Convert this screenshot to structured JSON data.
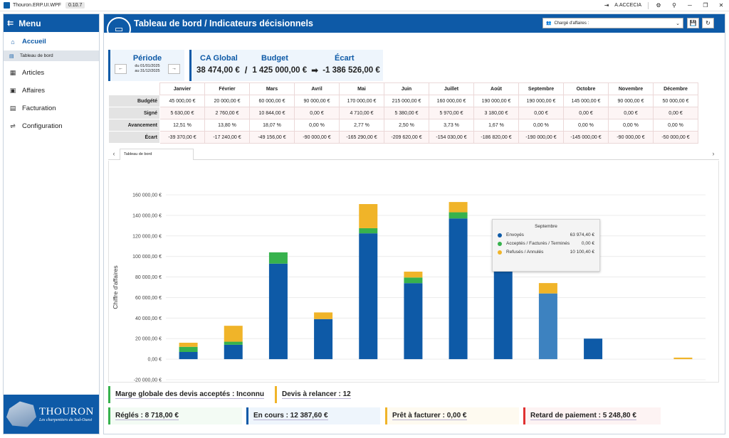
{
  "window": {
    "title": "Thouron.ERP.UI.WPF",
    "version": "0.10.7",
    "user": "A.ACCECIA"
  },
  "sidebar": {
    "header": "Menu",
    "items": [
      {
        "label": "Accueil",
        "icon": "home-icon",
        "active": true
      },
      {
        "label": "Articles",
        "icon": "articles-icon"
      },
      {
        "label": "Affaires",
        "icon": "briefcase-icon"
      },
      {
        "label": "Facturation",
        "icon": "invoice-icon"
      },
      {
        "label": "Configuration",
        "icon": "sliders-icon"
      }
    ],
    "subitem": "Tableau de bord",
    "logo": {
      "brand": "THOURON",
      "tagline": "Les charpentiers du Sud-Ouest"
    }
  },
  "header": {
    "title": "Tableau de bord / Indicateurs décisionnels",
    "charge_label": "Chargé d'affaires :"
  },
  "periode": {
    "label": "Période",
    "from": "du 01/01/2025",
    "to": "au 31/12/2025"
  },
  "kpi": {
    "ca_label": "CA Global",
    "budget_label": "Budget",
    "ecart_label": "Écart",
    "ca": "38 474,00 €",
    "budget": "1 425 000,00 €",
    "ecart": "-1 386 526,00 €"
  },
  "monthly": {
    "months": [
      "Janvier",
      "Février",
      "Mars",
      "Avril",
      "Mai",
      "Juin",
      "Juillet",
      "Août",
      "Septembre",
      "Octobre",
      "Novembre",
      "Décembre"
    ],
    "rows": [
      {
        "label": "Budgété",
        "values": [
          "45 000,00 €",
          "20 000,00 €",
          "60 000,00 €",
          "90 000,00 €",
          "170 000,00 €",
          "215 000,00 €",
          "160 000,00 €",
          "190 000,00 €",
          "190 000,00 €",
          "145 000,00 €",
          "90 000,00 €",
          "50 000,00 €"
        ]
      },
      {
        "label": "Signé",
        "values": [
          "5 630,00 €",
          "2 760,00 €",
          "10 844,00 €",
          "0,00 €",
          "4 710,00 €",
          "5 380,00 €",
          "5 970,00 €",
          "3 180,00 €",
          "0,00 €",
          "0,00 €",
          "0,00 €",
          "0,00 €"
        ]
      },
      {
        "label": "Avancement",
        "values": [
          "12,51 %",
          "13,80 %",
          "18,07 %",
          "0,00 %",
          "2,77 %",
          "2,50 %",
          "3,73 %",
          "1,67 %",
          "0,00 %",
          "0,00 %",
          "0,00 %",
          "0,00 %"
        ]
      },
      {
        "label": "Écart",
        "values": [
          "-39 370,00 €",
          "-17 240,00 €",
          "-49 156,00 €",
          "-90 000,00 €",
          "-165 290,00 €",
          "-209 620,00 €",
          "-154 030,00 €",
          "-186 820,00 €",
          "-190 000,00 €",
          "-145 000,00 €",
          "-90 000,00 €",
          "-50 000,00 €"
        ]
      }
    ]
  },
  "tab": {
    "label": "Tableau de bord"
  },
  "chart_data": {
    "type": "bar",
    "stacked": true,
    "categories": [
      "Janvier",
      "Février",
      "Mars",
      "Avril",
      "Mai",
      "Juin",
      "Juillet",
      "Août",
      "Septembre",
      "Octobre",
      "Novembre",
      "Décembre"
    ],
    "series": [
      {
        "name": "Envoyés",
        "color": "#0e5aa7",
        "values": [
          7000,
          14000,
          93000,
          39000,
          122500,
          74000,
          137000,
          86000,
          63974.4,
          20000,
          0,
          0
        ]
      },
      {
        "name": "Acceptés / Facturés / Terminés",
        "color": "#37b24d",
        "values": [
          5000,
          3000,
          11000,
          0,
          5000,
          5500,
          6000,
          3000,
          0,
          0,
          0,
          0
        ]
      },
      {
        "name": "Refusés / Annulés",
        "color": "#f0b429",
        "values": [
          4000,
          15500,
          0,
          6500,
          23500,
          5700,
          10000,
          0,
          10100.4,
          0,
          0,
          1500
        ]
      }
    ],
    "ylabel": "Chiffre d'affaires",
    "ylim": [
      -20000,
      160000
    ],
    "yticks": [
      "-20 000,00 €",
      "0,00 €",
      "20 000,00 €",
      "40 000,00 €",
      "60 000,00 €",
      "80 000,00 €",
      "100 000,00 €",
      "120 000,00 €",
      "140 000,00 €",
      "160 000,00 €"
    ],
    "highlight_index": 8,
    "tooltip": {
      "title": "Septembre",
      "rows": [
        {
          "name": "Envoyés",
          "value": "63 974,40 €",
          "color": "#0e5aa7"
        },
        {
          "name": "Acceptés / Facturés / Terminés",
          "value": "0,00 €",
          "color": "#37b24d"
        },
        {
          "name": "Refusés / Annulés",
          "value": "10 100,40 €",
          "color": "#f0b429"
        }
      ]
    }
  },
  "cards": {
    "marge": {
      "text": "Marge globale des devis acceptés : Inconnu",
      "color": "#37b24d"
    },
    "relancer": {
      "text": "Devis à relancer : 12",
      "color": "#f0b429"
    },
    "regles": {
      "text": "Réglés : 8 718,00 €",
      "color": "#37b24d"
    },
    "encours": {
      "text": "En cours : 12 387,60 €",
      "color": "#0e5aa7"
    },
    "pret": {
      "text": "Prêt à facturer : 0,00 €",
      "color": "#f0b429"
    },
    "retard": {
      "text": "Retard de paiement : 5 248,80 €",
      "color": "#e03131"
    }
  }
}
